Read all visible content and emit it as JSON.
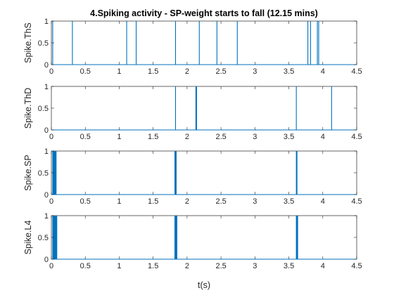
{
  "chart_data": {
    "type": "line",
    "title": "4.Spiking activity - SP-weight starts to fall (12.15 mins)",
    "xlabel": "t(s)",
    "line_color": "#0072BD",
    "panels": [
      {
        "ylabel": "Spike.ThS",
        "xlim": [
          0,
          4.5
        ],
        "ylim": [
          0,
          1
        ],
        "xticks": [
          "0",
          "0.5",
          "1",
          "1.5",
          "2",
          "2.5",
          "3",
          "3.5",
          "4",
          "4.5"
        ],
        "yticks": [
          "0",
          "0.5",
          "1"
        ],
        "spike_times": [
          0.02,
          0.31,
          1.11,
          1.25,
          1.83,
          2.18,
          2.44,
          2.74,
          3.78,
          3.82,
          3.92,
          3.94
        ]
      },
      {
        "ylabel": "Spike.ThD",
        "xlim": [
          0,
          4.5
        ],
        "ylim": [
          0,
          1
        ],
        "xticks": [
          "0",
          "0.5",
          "1",
          "1.5",
          "2",
          "2.5",
          "3",
          "3.5",
          "4",
          "4.5"
        ],
        "yticks": [
          "0",
          "0.5",
          "1"
        ],
        "spike_times": [
          1.83,
          2.13,
          2.14,
          3.61,
          4.13
        ]
      },
      {
        "ylabel": "Spike.SP",
        "xlim": [
          0,
          4.5
        ],
        "ylim": [
          0,
          1
        ],
        "xticks": [
          "0",
          "0.5",
          "1",
          "1.5",
          "2",
          "2.5",
          "3",
          "3.5",
          "4",
          "4.5"
        ],
        "yticks": [
          "0",
          "0.5",
          "1"
        ],
        "spike_times": [
          0.02,
          0.03,
          0.04,
          0.05,
          0.06,
          0.07,
          1.82,
          1.83,
          1.84,
          3.61,
          3.62
        ]
      },
      {
        "ylabel": "Spike.L4",
        "xlim": [
          0,
          4.5
        ],
        "ylim": [
          0,
          1
        ],
        "xticks": [
          "0",
          "0.5",
          "1",
          "1.5",
          "2",
          "2.5",
          "3",
          "3.5",
          "4",
          "4.5"
        ],
        "yticks": [
          "0",
          "0.5",
          "1"
        ],
        "spike_times": [
          0.02,
          0.03,
          0.04,
          0.05,
          0.06,
          0.07,
          0.08,
          1.82,
          1.83,
          1.84,
          1.85,
          3.61,
          3.62,
          3.63
        ]
      }
    ]
  }
}
